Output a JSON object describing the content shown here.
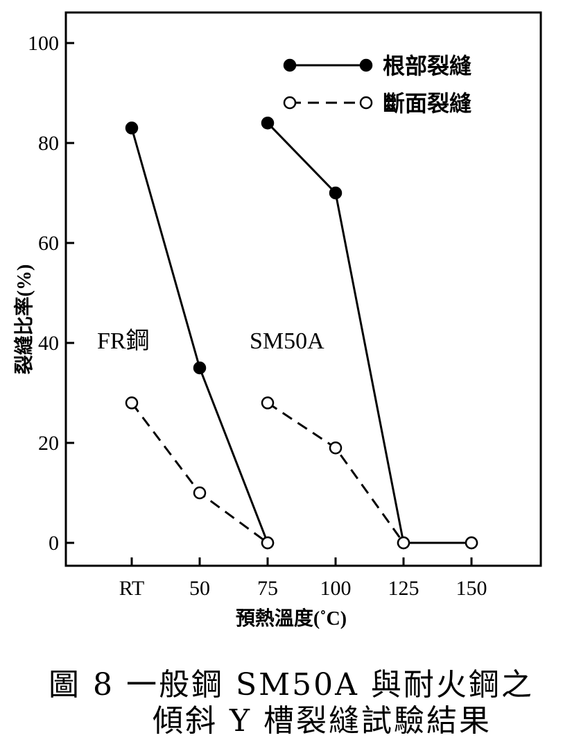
{
  "chart_data": {
    "type": "line",
    "xlabel": "預熱溫度(˚C)",
    "ylabel": "裂縫比率(%)",
    "categories": [
      "RT",
      "50",
      "75",
      "100",
      "125",
      "150"
    ],
    "yticks": [
      "0",
      "20",
      "40",
      "60",
      "80",
      "100"
    ],
    "ylim": [
      -4,
      104
    ],
    "legend": [
      {
        "name": "根部裂縫",
        "style": "solid",
        "marker": "filled-circle"
      },
      {
        "name": "斷面裂縫",
        "style": "dashed",
        "marker": "open-circle"
      }
    ],
    "legend_position": "top-right",
    "groups": [
      {
        "label": "FR鋼",
        "series": [
          {
            "name": "根部裂縫",
            "x": [
              "RT",
              "50",
              "75"
            ],
            "y": [
              83,
              35,
              0
            ]
          },
          {
            "name": "斷面裂縫",
            "x": [
              "RT",
              "50",
              "75"
            ],
            "y": [
              28,
              10,
              0
            ]
          }
        ]
      },
      {
        "label": "SM50A",
        "series": [
          {
            "name": "根部裂縫",
            "x": [
              "75",
              "100",
              "125",
              "150"
            ],
            "y": [
              84,
              70,
              0,
              0
            ]
          },
          {
            "name": "斷面裂縫",
            "x": [
              "75",
              "100",
              "125",
              "150"
            ],
            "y": [
              28,
              19,
              0,
              0
            ]
          }
        ]
      }
    ]
  },
  "caption": {
    "line1": "圖 8 一般鋼 SM50A 與耐火鋼之",
    "line2": "傾斜 Y 槽裂縫試驗結果"
  }
}
